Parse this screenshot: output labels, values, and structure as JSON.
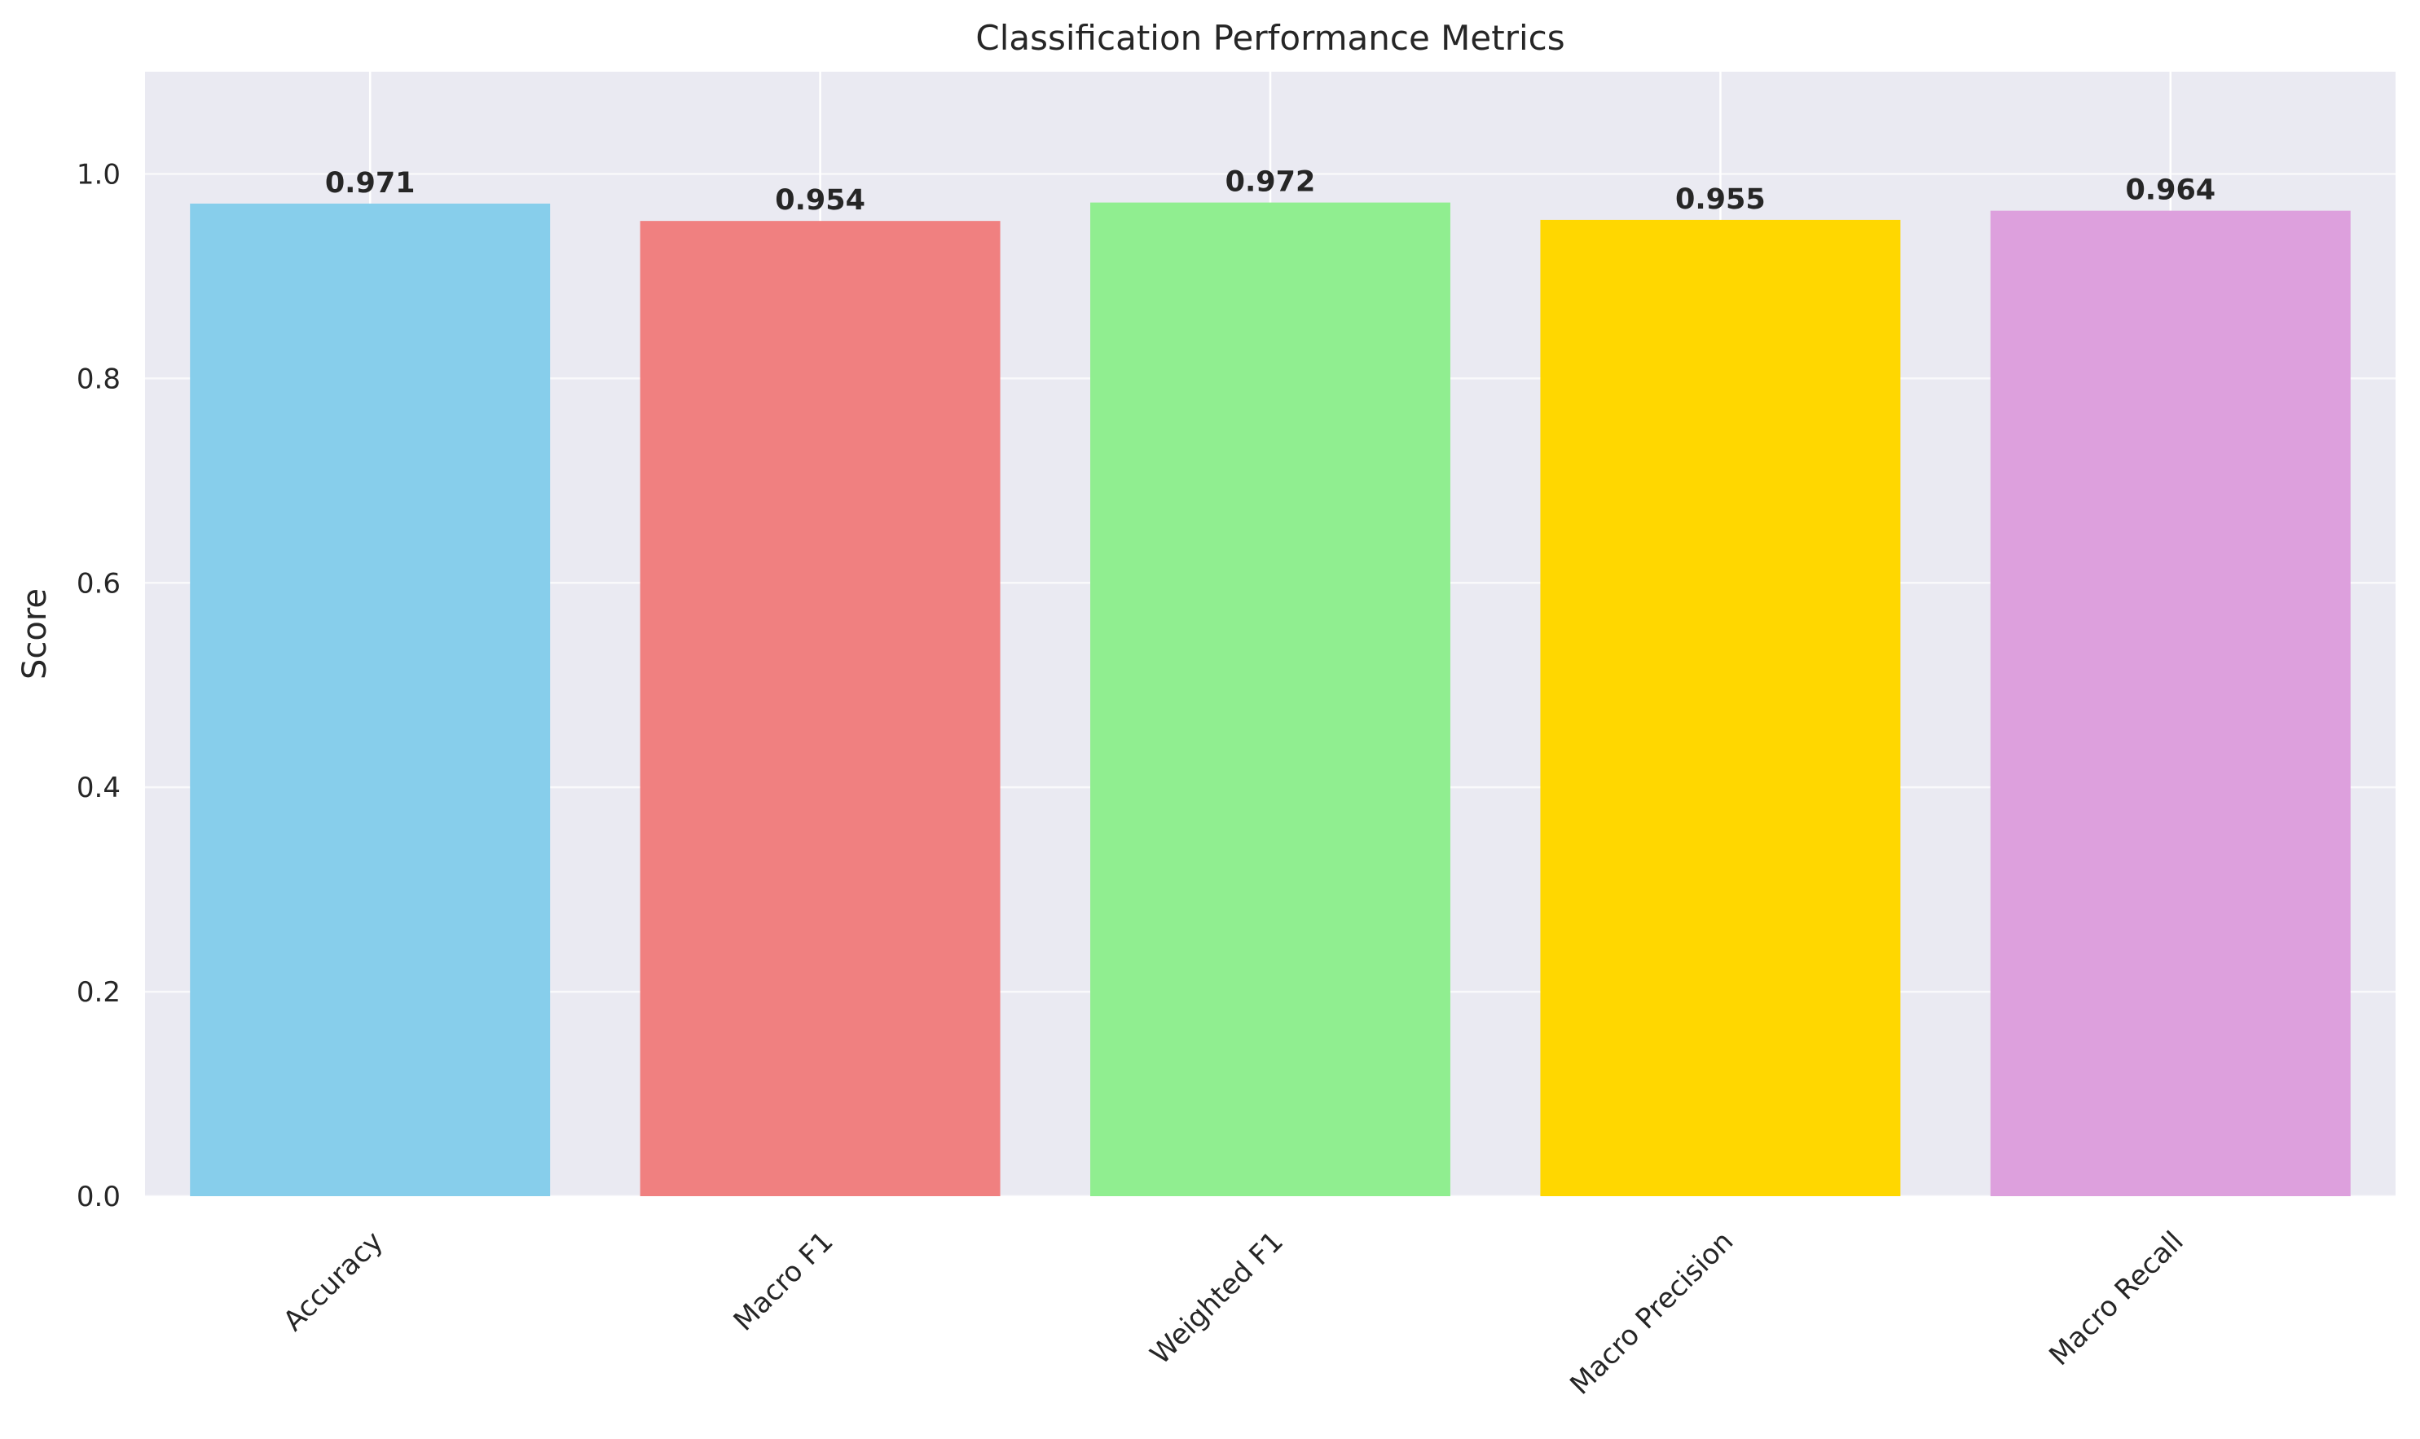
{
  "chart_data": {
    "type": "bar",
    "title": "Classification Performance Metrics",
    "xlabel": "",
    "ylabel": "Score",
    "categories": [
      "Accuracy",
      "Macro F1",
      "Weighted F1",
      "Macro Precision",
      "Macro Recall"
    ],
    "values": [
      0.971,
      0.954,
      0.972,
      0.955,
      0.964
    ],
    "data_labels": [
      "0.971",
      "0.954",
      "0.972",
      "0.955",
      "0.964"
    ],
    "colors": [
      "#87ceeb",
      "#f08080",
      "#90ee90",
      "#ffd700",
      "#dda0dd"
    ],
    "ylim": [
      0,
      1.1
    ],
    "yticks": [
      0.0,
      0.2,
      0.4,
      0.6,
      0.8,
      1.0
    ],
    "ytick_labels": [
      "0.0",
      "0.2",
      "0.4",
      "0.6",
      "0.8",
      "1.0"
    ],
    "grid": true,
    "legend": "none",
    "background": "#eaeaf2",
    "grid_color": "#ffffff"
  }
}
